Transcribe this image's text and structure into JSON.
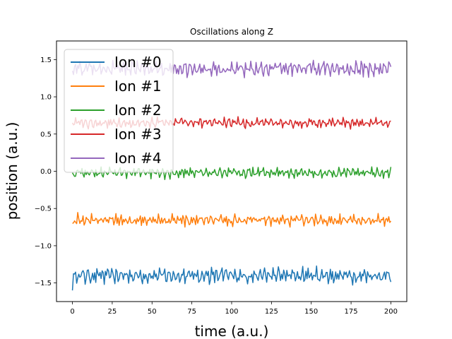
{
  "chart_data": {
    "type": "line",
    "title": "Oscillations along Z",
    "xlabel": "time (a.u.)",
    "ylabel": "position (a.u.)",
    "xlim": [
      -10,
      210
    ],
    "ylim": [
      -1.75,
      1.75
    ],
    "xticks": [
      0,
      25,
      50,
      75,
      100,
      125,
      150,
      175,
      200
    ],
    "xtick_labels": [
      "0",
      "25",
      "50",
      "75",
      "100",
      "125",
      "150",
      "175",
      "200"
    ],
    "yticks": [
      -1.5,
      -1.0,
      -0.5,
      0.0,
      0.5,
      1.0,
      1.5
    ],
    "ytick_labels": [
      "−1.5",
      "−1.0",
      "−0.5",
      "0.0",
      "0.5",
      "1.0",
      "1.5"
    ],
    "grid": false,
    "legend_position": "top-left",
    "x_range": [
      0,
      200
    ],
    "n_points": 301,
    "series": [
      {
        "name": "Ion #0",
        "color": "#1f77b4",
        "mean": -1.4,
        "amplitude": 0.11,
        "start": -1.6
      },
      {
        "name": "Ion #1",
        "color": "#ff7f0e",
        "mean": -0.66,
        "amplitude": 0.08,
        "start": -0.7
      },
      {
        "name": "Ion #2",
        "color": "#2ca02c",
        "mean": -0.02,
        "amplitude": 0.07,
        "start": -0.02
      },
      {
        "name": "Ion #3",
        "color": "#d62728",
        "mean": 0.65,
        "amplitude": 0.07,
        "start": 0.65
      },
      {
        "name": "Ion #4",
        "color": "#9467bd",
        "mean": 1.38,
        "amplitude": 0.1,
        "start": 1.35
      }
    ]
  }
}
